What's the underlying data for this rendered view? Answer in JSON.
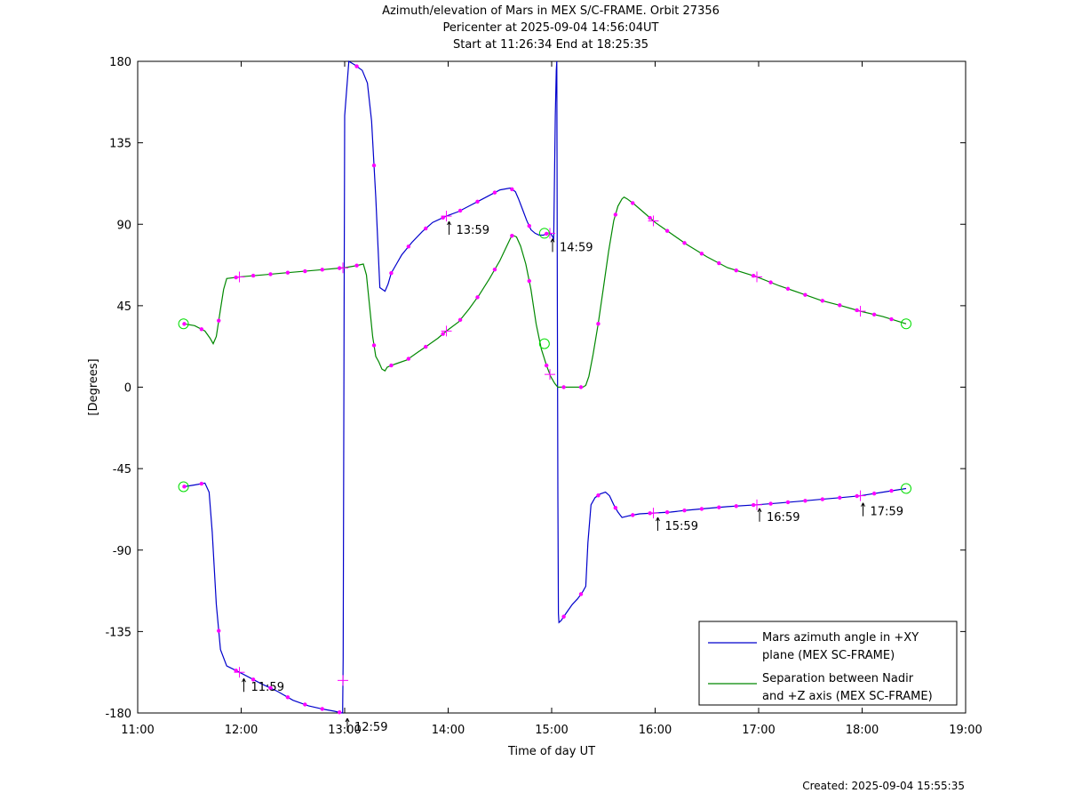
{
  "chart_data": {
    "type": "line",
    "title": [
      "Azimuth/elevation of Mars in MEX S/C-FRAME.  Orbit 27356",
      "Pericenter at 2025-09-04 14:56:04UT",
      "Start at 11:26:34 End at 18:25:35"
    ],
    "xlabel": "Time of day UT",
    "ylabel": "[Degrees]",
    "xlim": [
      11.0,
      19.0
    ],
    "ylim": [
      -180,
      180
    ],
    "xticks": [
      "11:00",
      "12:00",
      "13:00",
      "14:00",
      "15:00",
      "16:00",
      "17:00",
      "18:00",
      "19:00"
    ],
    "yticks": [
      "180",
      "135",
      "90",
      "45",
      "0",
      "-45",
      "-90",
      "-135",
      "-180"
    ],
    "grid": false,
    "legend_position": "bottom-right",
    "created": "Created: 2025-09-04 15:55:35",
    "series": [
      {
        "name": "Mars azimuth angle in +XY plane (MEX SC-FRAME)",
        "legend_lines": [
          "Mars azimuth angle in +XY",
          "plane (MEX SC-FRAME)"
        ],
        "color": "#0000cc",
        "x": [
          11.443,
          11.55,
          11.65,
          11.69,
          11.72,
          11.76,
          11.8,
          11.86,
          11.93,
          12.0,
          12.1,
          12.2,
          12.35,
          12.5,
          12.65,
          12.8,
          12.9,
          12.98,
          12.985,
          12.99,
          12.995,
          13.0,
          13.04,
          13.1,
          13.17,
          13.22,
          13.26,
          13.3,
          13.34,
          13.39,
          13.42,
          13.45,
          13.5,
          13.55,
          13.65,
          13.75,
          13.85,
          13.983,
          14.1,
          14.2,
          14.3,
          14.4,
          14.5,
          14.6,
          14.65,
          14.68,
          14.72,
          14.76,
          14.8,
          14.84,
          14.88,
          14.92,
          14.96,
          14.99,
          15.02,
          15.035,
          15.045,
          15.05,
          15.055,
          15.06,
          15.065,
          15.07,
          15.07,
          15.09,
          15.15,
          15.2,
          15.25,
          15.3,
          15.33,
          15.35,
          15.38,
          15.42,
          15.47,
          15.52,
          15.56,
          15.6,
          15.64,
          15.68,
          15.75,
          15.85,
          16.0,
          16.15,
          16.3,
          16.5,
          16.7,
          16.98,
          17.2,
          17.4,
          17.6,
          17.8,
          17.98,
          18.2,
          18.425
        ],
        "y": [
          -55,
          -54,
          -53,
          -58,
          -80,
          -120,
          -145,
          -154,
          -156,
          -158,
          -161,
          -164,
          -168,
          -173,
          -176,
          -178,
          -179,
          -180,
          -150,
          -60,
          50,
          150,
          180,
          178,
          175,
          168,
          147,
          105,
          55,
          53,
          57,
          63,
          68,
          73,
          80,
          86,
          91,
          94.5,
          97,
          100,
          103,
          106,
          109,
          110,
          108,
          104,
          98,
          92,
          87,
          85,
          84,
          84,
          85,
          85,
          82,
          150,
          175,
          180,
          50,
          -60,
          -125,
          -130,
          -130,
          -129,
          -124,
          -120,
          -117,
          -113,
          -110,
          -86,
          -65,
          -61,
          -59,
          -58,
          -60,
          -65,
          -69,
          -72,
          -71,
          -70,
          -69.5,
          -69,
          -68,
          -67,
          -66,
          -65,
          -64,
          -63,
          -62,
          -61,
          -60,
          -58,
          -56
        ]
      },
      {
        "name": "Separation between Nadir and +Z axis (MEX SC-FRAME)",
        "legend_lines": [
          "Separation between Nadir",
          "and +Z axis (MEX SC-FRAME)"
        ],
        "color": "#008800",
        "x": [
          11.443,
          11.55,
          11.65,
          11.7,
          11.73,
          11.76,
          11.8,
          11.83,
          11.86,
          12.0,
          12.2,
          12.4,
          12.6,
          12.8,
          13.0,
          13.1,
          13.18,
          13.21,
          13.24,
          13.27,
          13.3,
          13.33,
          13.36,
          13.39,
          13.41,
          13.45,
          13.5,
          13.6,
          13.7,
          13.8,
          13.9,
          13.983,
          14.1,
          14.2,
          14.3,
          14.4,
          14.5,
          14.55,
          14.6,
          14.62,
          14.66,
          14.7,
          14.75,
          14.8,
          14.85,
          14.9,
          14.95,
          14.99,
          15.03,
          15.06,
          15.1,
          15.2,
          15.3,
          15.33,
          15.36,
          15.4,
          15.45,
          15.5,
          15.55,
          15.6,
          15.64,
          15.68,
          15.7,
          15.73,
          15.8,
          15.9,
          16.0,
          16.15,
          16.3,
          16.5,
          16.7,
          16.98,
          17.2,
          17.4,
          17.6,
          17.8,
          17.98,
          18.2,
          18.425
        ],
        "y": [
          35,
          34,
          31,
          27,
          24,
          28,
          43,
          54,
          60,
          61,
          62,
          63,
          64,
          65,
          66,
          67,
          68,
          62,
          45,
          28,
          17,
          14,
          10,
          9,
          11,
          12,
          13,
          15,
          19,
          23,
          27,
          31,
          36,
          43,
          51,
          60,
          70,
          76,
          82,
          84,
          83,
          78,
          68,
          54,
          35,
          21,
          12,
          6,
          2,
          0,
          0,
          0,
          0,
          1,
          6,
          18,
          35,
          55,
          75,
          92,
          100,
          104,
          105,
          104,
          101,
          96,
          91,
          85,
          79,
          72,
          66,
          61,
          56,
          52,
          48,
          45,
          42,
          39,
          35
        ]
      }
    ],
    "time_markers": [
      {
        "label": "11:59",
        "x": 12.0,
        "y": -158,
        "series": 0
      },
      {
        "label": "12:59",
        "x": 13.0,
        "y": -180,
        "series": 0
      },
      {
        "label": "13:59",
        "x": 13.983,
        "y": 94.5,
        "series": 0
      },
      {
        "label": "14:59",
        "x": 14.983,
        "y": 85,
        "series": 0
      },
      {
        "label": "15:59",
        "x": 16.0,
        "y": -69,
        "series": 0
      },
      {
        "label": "16:59",
        "x": 16.983,
        "y": -64,
        "series": 0
      },
      {
        "label": "17:59",
        "x": 17.983,
        "y": -61,
        "series": 0
      }
    ],
    "circle_markers": [
      {
        "x": 11.443,
        "y": 35
      },
      {
        "x": 11.443,
        "y": -55
      },
      {
        "x": 18.425,
        "y": 35
      },
      {
        "x": 18.425,
        "y": -56
      },
      {
        "x": 14.93,
        "y": 85
      },
      {
        "x": 14.93,
        "y": 24
      }
    ]
  }
}
